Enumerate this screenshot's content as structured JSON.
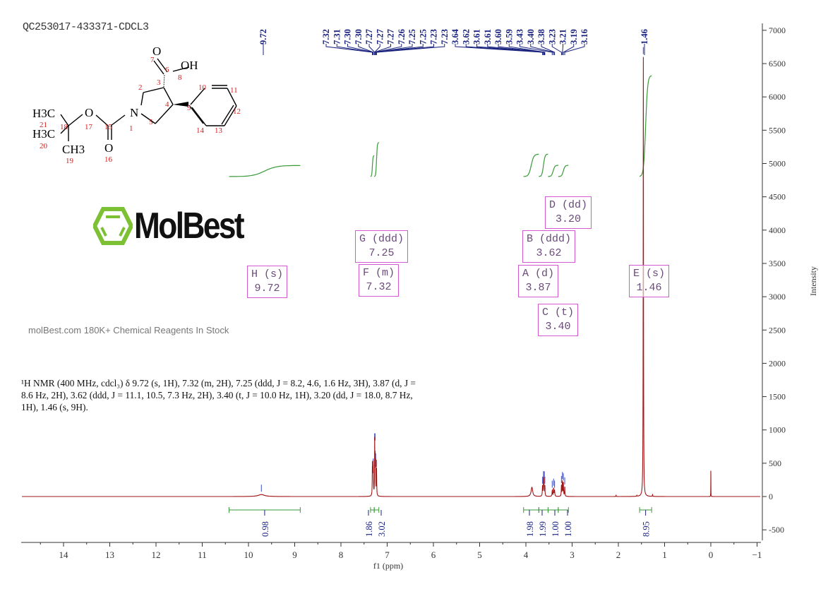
{
  "title": "QC253017-433371-CDCL3",
  "structure": {
    "atoms": [
      "O",
      "OH",
      "H3C",
      "H3C",
      "CH3",
      "O",
      "N",
      "O"
    ],
    "numbers": [
      "7",
      "6",
      "8",
      "2",
      "3",
      "10",
      "11",
      "4",
      "9",
      "12",
      "21",
      "18",
      "17",
      "15",
      "1",
      "5",
      "14",
      "13",
      "20",
      "19",
      "16"
    ]
  },
  "description": "¹H NMR (400 MHz, cdcl₃) δ 9.72 (s, 1H), 7.32 (m, 2H), 7.25 (ddd, J = 8.2, 4.6, 1.6 Hz, 3H), 3.87 (d, J = 8.6 Hz, 2H), 3.62 (ddd, J = 11.1, 10.5, 7.3 Hz, 2H), 3.40 (t, J = 10.0 Hz, 1H), 3.20 (dd, J = 18.0, 8.7 Hz, 1H), 1.46 (s, 9H).",
  "watermark": {
    "brand": "MolBest",
    "text": "molBest.com 180K+ Chemical Reagents In Stock"
  },
  "multiplets": [
    {
      "label": "H (s)",
      "shift": "9.72"
    },
    {
      "label": "G (ddd)",
      "shift": "7.25"
    },
    {
      "label": "F (m)",
      "shift": "7.32"
    },
    {
      "label": "A (d)",
      "shift": "3.87"
    },
    {
      "label": "B (ddd)",
      "shift": "3.62"
    },
    {
      "label": "C (t)",
      "shift": "3.40"
    },
    {
      "label": "D (dd)",
      "shift": "3.20"
    },
    {
      "label": "E (s)",
      "shift": "1.46"
    }
  ],
  "chart_data": {
    "type": "line",
    "xlabel": "f1 (ppm)",
    "ylabel": "Intensity",
    "xlim": [
      14.9,
      -1.07
    ],
    "ylim": [
      -700,
      7100
    ],
    "xticks": [
      "14",
      "13",
      "12",
      "11",
      "10",
      "9",
      "8",
      "7",
      "6",
      "5",
      "4",
      "3",
      "2",
      "1",
      "0",
      "−1"
    ],
    "xtick_values": [
      14,
      13,
      12,
      11,
      10,
      9,
      8,
      7,
      6,
      5,
      4,
      3,
      2,
      1,
      0,
      -1
    ],
    "yticks": [
      "7000",
      "6500",
      "6000",
      "5500",
      "5000",
      "4500",
      "4000",
      "3500",
      "3000",
      "2500",
      "2000",
      "1500",
      "1000",
      "500",
      "0",
      "-500"
    ],
    "ytick_values": [
      7000,
      6500,
      6000,
      5500,
      5000,
      4500,
      4000,
      3500,
      3000,
      2500,
      2000,
      1500,
      1000,
      500,
      0,
      -500
    ],
    "peak_labels": [
      "9.72",
      "7.32",
      "7.31",
      "7.30",
      "7.30",
      "7.27",
      "7.27",
      "7.27",
      "7.26",
      "7.25",
      "7.25",
      "7.23",
      "7.23",
      "3.64",
      "3.62",
      "3.61",
      "3.61",
      "3.60",
      "3.59",
      "3.43",
      "3.40",
      "3.38",
      "3.23",
      "3.21",
      "3.19",
      "3.16",
      "1.46"
    ],
    "peaks": [
      {
        "ppm": 9.72,
        "height": 30,
        "width": 0.08
      },
      {
        "ppm": 7.32,
        "height": 380,
        "width": 0.004
      },
      {
        "ppm": 7.31,
        "height": 420,
        "width": 0.004
      },
      {
        "ppm": 7.3,
        "height": 380,
        "width": 0.004
      },
      {
        "ppm": 7.27,
        "height": 800,
        "width": 0.004
      },
      {
        "ppm": 7.26,
        "height": 500,
        "width": 0.004
      },
      {
        "ppm": 7.25,
        "height": 450,
        "width": 0.004
      },
      {
        "ppm": 7.23,
        "height": 400,
        "width": 0.004
      },
      {
        "ppm": 3.87,
        "height": 140,
        "width": 0.02
      },
      {
        "ppm": 3.64,
        "height": 150,
        "width": 0.005
      },
      {
        "ppm": 3.62,
        "height": 230,
        "width": 0.005
      },
      {
        "ppm": 3.61,
        "height": 230,
        "width": 0.005
      },
      {
        "ppm": 3.59,
        "height": 150,
        "width": 0.005
      },
      {
        "ppm": 3.43,
        "height": 90,
        "width": 0.006
      },
      {
        "ppm": 3.4,
        "height": 120,
        "width": 0.006
      },
      {
        "ppm": 3.38,
        "height": 90,
        "width": 0.006
      },
      {
        "ppm": 3.23,
        "height": 160,
        "width": 0.005
      },
      {
        "ppm": 3.21,
        "height": 220,
        "width": 0.005
      },
      {
        "ppm": 3.19,
        "height": 200,
        "width": 0.005
      },
      {
        "ppm": 3.16,
        "height": 140,
        "width": 0.005
      },
      {
        "ppm": 2.05,
        "height": 20,
        "width": 0.004
      },
      {
        "ppm": 1.6,
        "height": 15,
        "width": 0.004
      },
      {
        "ppm": 1.46,
        "height": 6600,
        "width": 0.004
      },
      {
        "ppm": 1.26,
        "height": 30,
        "width": 0.004
      },
      {
        "ppm": 0.0,
        "height": 430,
        "width": 0.0015
      }
    ],
    "integrals": [
      {
        "from": 10.42,
        "to": 8.88,
        "value": "0.98"
      },
      {
        "from": 7.36,
        "to": 7.28,
        "value": "1.86"
      },
      {
        "from": 7.28,
        "to": 7.18,
        "value": "3.02"
      },
      {
        "from": 4.05,
        "to": 3.72,
        "value": "1.98"
      },
      {
        "from": 3.72,
        "to": 3.52,
        "value": "1.99"
      },
      {
        "from": 3.52,
        "to": 3.3,
        "value": "1.00"
      },
      {
        "from": 3.3,
        "to": 3.08,
        "value": "1.00"
      },
      {
        "from": 1.54,
        "to": 1.28,
        "value": "8.95"
      }
    ],
    "colors": {
      "spectrum": "#a01818",
      "integral": "#3a9a3a",
      "peak_label": "#1a237e",
      "multiplet": "#d45ad4"
    }
  }
}
